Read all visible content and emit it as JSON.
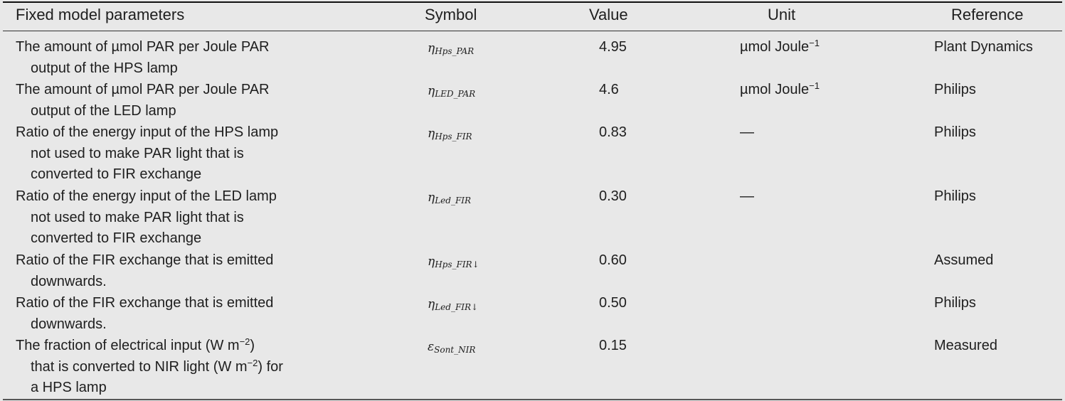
{
  "header": {
    "parameter": "Fixed model parameters",
    "symbol": "Symbol",
    "value": "Value",
    "unit": "Unit",
    "reference": "Reference"
  },
  "rows": [
    {
      "lines": [
        "The amount of µmol PAR per Joule PAR",
        "output of the HPS lamp"
      ],
      "symbol_main": "η",
      "symbol_sub": "Hps_PAR",
      "value": "4.95",
      "unit": "µmol Joule",
      "unit_sup": "−1",
      "reference": "Plant Dynamics"
    },
    {
      "lines": [
        "The amount of µmol PAR per Joule PAR",
        "output of the LED lamp"
      ],
      "symbol_main": "η",
      "symbol_sub": "LED_PAR",
      "value": "4.6",
      "unit": "µmol Joule",
      "unit_sup": "−1",
      "reference": "Philips"
    },
    {
      "lines": [
        "Ratio of the energy input of the HPS lamp",
        "not used to make PAR light that is",
        "converted to FIR exchange"
      ],
      "symbol_main": "η",
      "symbol_sub": "Hps_FIR",
      "value": "0.83",
      "unit": "—",
      "unit_sup": "",
      "reference": "Philips"
    },
    {
      "lines": [
        "Ratio of the energy input of the LED lamp",
        "not used to make PAR light that is",
        "converted to FIR exchange"
      ],
      "symbol_main": "η",
      "symbol_sub": "Led_FIR",
      "value": "0.30",
      "unit": "—",
      "unit_sup": "",
      "reference": "Philips"
    },
    {
      "lines": [
        "Ratio of the FIR exchange that is emitted",
        "downwards."
      ],
      "symbol_main": "η",
      "symbol_sub": "Hps_FIR↓",
      "value": "0.60",
      "unit": "",
      "unit_sup": "",
      "reference": "Assumed"
    },
    {
      "lines": [
        "Ratio of the FIR exchange that is emitted",
        "downwards."
      ],
      "symbol_main": "η",
      "symbol_sub": "Led_FIR↓",
      "value": "0.50",
      "unit": "",
      "unit_sup": "",
      "reference": "Philips"
    },
    {
      "lines": [
        "The fraction of electrical input (W m",
        "that is converted to NIR light (W m",
        "a HPS lamp"
      ],
      "line_parts": [
        {
          "sup": "−2",
          "after": ")"
        },
        {
          "sup": "−2",
          "after": ") for"
        },
        null
      ],
      "symbol_main": "ε",
      "symbol_sub": "Sont_NIR",
      "value": "0.15",
      "unit": "",
      "unit_sup": "",
      "reference": "Measured"
    }
  ]
}
